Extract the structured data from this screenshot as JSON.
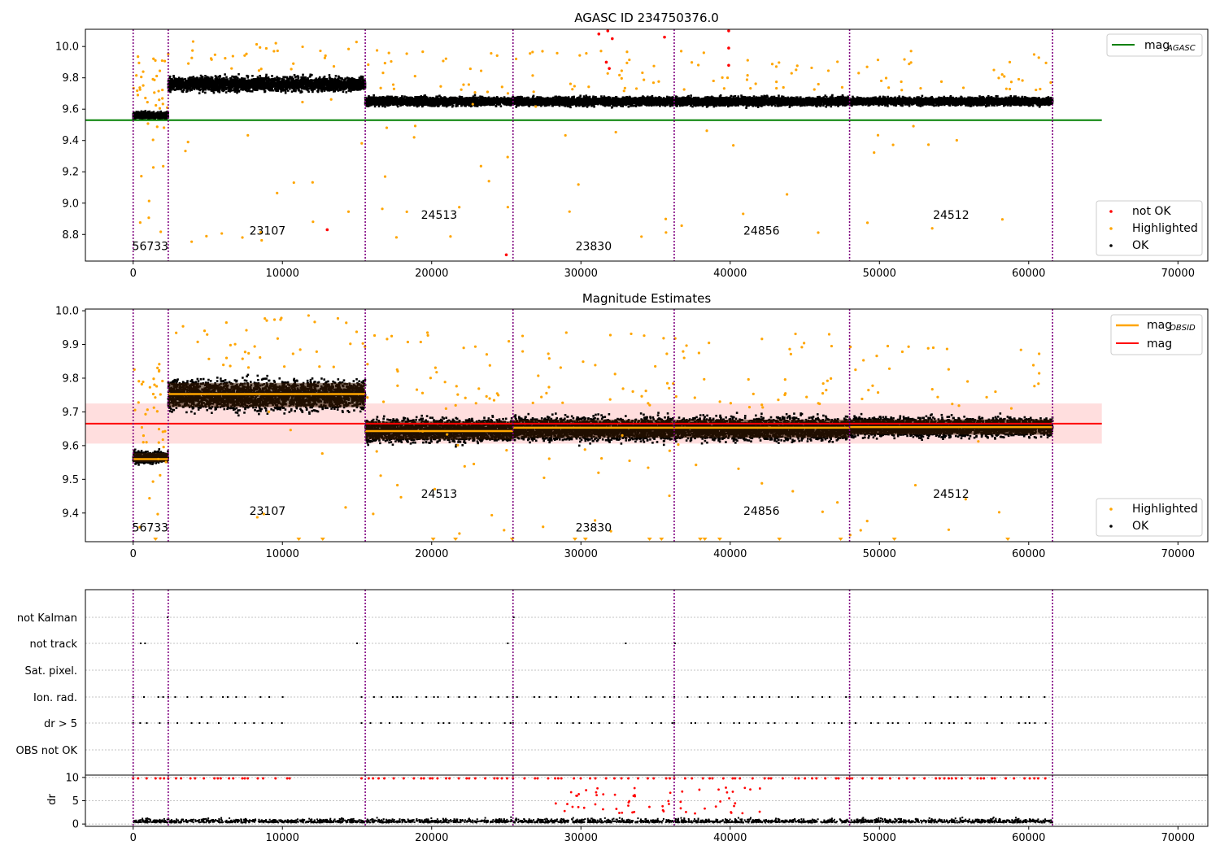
{
  "chart_data": [
    {
      "type": "scatter",
      "title": "AGASC ID 234750376.0",
      "xlim": [
        -3200,
        72000
      ],
      "ylim": [
        8.63,
        10.11
      ],
      "x_ticks": [
        0,
        10000,
        20000,
        30000,
        40000,
        50000,
        60000,
        70000
      ],
      "y_ticks": [
        8.8,
        9.0,
        9.2,
        9.4,
        9.6,
        9.8,
        10.0
      ],
      "x_tick_labels": [
        "0",
        "10000",
        "20000",
        "30000",
        "40000",
        "50000",
        "60000",
        "70000"
      ],
      "y_tick_labels": [
        "8.8",
        "9.0",
        "9.2",
        "9.4",
        "9.6",
        "9.8",
        "10.0"
      ],
      "obsid_boundaries": [
        0,
        2350,
        15550,
        25450,
        36250,
        48000,
        61600
      ],
      "obsid_labels": [
        {
          "label": "56733",
          "x": 1150,
          "y": 8.7
        },
        {
          "label": "23107",
          "x": 9000,
          "y": 8.8
        },
        {
          "label": "24513",
          "x": 20500,
          "y": 8.9
        },
        {
          "label": "23830",
          "x": 30850,
          "y": 8.7
        },
        {
          "label": "24856",
          "x": 42100,
          "y": 8.8
        },
        {
          "label": "24512",
          "x": 54800,
          "y": 8.9
        }
      ],
      "mag_agasc": 9.53,
      "mag_agasc_line_x": [
        -3200,
        64900
      ],
      "segments": [
        {
          "x0": 0,
          "x1": 2350,
          "mean": 9.56,
          "spread": 0.02
        },
        {
          "x0": 2350,
          "x1": 15550,
          "mean": 9.76,
          "spread": 0.04
        },
        {
          "x0": 15550,
          "x1": 25450,
          "mean": 9.65,
          "spread": 0.025
        },
        {
          "x0": 25450,
          "x1": 36250,
          "mean": 9.65,
          "spread": 0.025
        },
        {
          "x0": 36250,
          "x1": 48000,
          "mean": 9.65,
          "spread": 0.025
        },
        {
          "x0": 48000,
          "x1": 61600,
          "mean": 9.65,
          "spread": 0.022
        }
      ],
      "not_ok_points": [
        [
          13000,
          8.83
        ],
        [
          25000,
          8.67
        ],
        [
          31200,
          10.08
        ],
        [
          31800,
          10.1
        ],
        [
          32100,
          10.05
        ],
        [
          35600,
          10.06
        ],
        [
          39900,
          10.1
        ],
        [
          39900,
          9.99
        ],
        [
          39900,
          9.88
        ],
        [
          31700,
          9.9
        ],
        [
          31900,
          9.86
        ]
      ],
      "legend_top": [
        {
          "label": "mag",
          "sub": "AGASC",
          "color": "#008000"
        }
      ],
      "legend_bottom": [
        {
          "label": "not OK",
          "color": "#ff0000"
        },
        {
          "label": "Highlighted",
          "color": "#ffa500"
        },
        {
          "label": "OK",
          "color": "#000000"
        }
      ]
    },
    {
      "type": "scatter",
      "title": "Magnitude Estimates",
      "xlim": [
        -3200,
        72000
      ],
      "ylim": [
        9.315,
        10.005
      ],
      "x_ticks": [
        0,
        10000,
        20000,
        30000,
        40000,
        50000,
        60000,
        70000
      ],
      "y_ticks": [
        9.4,
        9.5,
        9.6,
        9.7,
        9.8,
        9.9,
        10.0
      ],
      "x_tick_labels": [
        "0",
        "10000",
        "20000",
        "30000",
        "40000",
        "50000",
        "60000",
        "70000"
      ],
      "y_tick_labels": [
        "9.4",
        "9.5",
        "9.6",
        "9.7",
        "9.8",
        "9.9",
        "10.0"
      ],
      "obsid_boundaries": [
        0,
        2350,
        15550,
        25450,
        36250,
        48000,
        61600
      ],
      "obsid_labels": [
        {
          "label": "56733",
          "x": 1150,
          "y": 9.345
        },
        {
          "label": "23107",
          "x": 9000,
          "y": 9.395
        },
        {
          "label": "24513",
          "x": 20500,
          "y": 9.445
        },
        {
          "label": "23830",
          "x": 30850,
          "y": 9.345
        },
        {
          "label": "24856",
          "x": 42100,
          "y": 9.395
        },
        {
          "label": "24512",
          "x": 54800,
          "y": 9.445
        }
      ],
      "mag": 9.665,
      "mag_band": [
        9.606,
        9.725
      ],
      "mag_line_x": [
        -3200,
        64900
      ],
      "mag_obsid": [
        {
          "x0": 0,
          "x1": 2350,
          "value": 9.56
        },
        {
          "x0": 2350,
          "x1": 15550,
          "value": 9.753
        },
        {
          "x0": 15550,
          "x1": 25450,
          "value": 9.643
        },
        {
          "x0": 25450,
          "x1": 36250,
          "value": 9.653
        },
        {
          "x0": 36250,
          "x1": 48000,
          "value": 9.653
        },
        {
          "x0": 48000,
          "x1": 61600,
          "value": 9.655
        }
      ],
      "segments": [
        {
          "x0": 0,
          "x1": 2350,
          "mean": 9.565,
          "spread": 0.015
        },
        {
          "x0": 2350,
          "x1": 15550,
          "mean": 9.75,
          "spread": 0.04
        },
        {
          "x0": 15550,
          "x1": 25450,
          "mean": 9.645,
          "spread": 0.03
        },
        {
          "x0": 25450,
          "x1": 36250,
          "mean": 9.65,
          "spread": 0.03
        },
        {
          "x0": 36250,
          "x1": 48000,
          "mean": 9.65,
          "spread": 0.03
        },
        {
          "x0": 48000,
          "x1": 61600,
          "mean": 9.655,
          "spread": 0.025
        }
      ],
      "legend_top": [
        {
          "label": "mag",
          "sub": "OBSID",
          "color": "#ffa500"
        },
        {
          "label": "mag",
          "sub": "",
          "color": "#ff0000"
        }
      ],
      "legend_bottom": [
        {
          "label": "Highlighted",
          "color": "#ffa500"
        },
        {
          "label": "OK",
          "color": "#000000"
        }
      ]
    },
    {
      "type": "scatter",
      "title": "",
      "xlim": [
        -3200,
        72000
      ],
      "categories": [
        "not Kalman",
        "not track",
        "Sat. pixel.",
        "Ion. rad.",
        "dr > 5",
        "OBS not OK"
      ],
      "obsid_boundaries": [
        0,
        2350,
        15550,
        25450,
        36250,
        48000,
        61600
      ],
      "flags": {
        "not Kalman": [
          2300,
          25500
        ],
        "not track": [
          500,
          800,
          15000,
          25100,
          33000,
          36300
        ],
        "Sat. pixel.": [],
        "Ion. rad.": "dense",
        "dr > 5": "dense",
        "OBS not OK": []
      }
    },
    {
      "type": "scatter",
      "title": "",
      "xlim": [
        -3200,
        72000
      ],
      "ylim": [
        -0.5,
        10.5
      ],
      "y_ticks": [
        0,
        5,
        10
      ],
      "x_ticks": [
        0,
        10000,
        20000,
        30000,
        40000,
        50000,
        60000,
        70000
      ],
      "y_tick_labels": [
        "0",
        "5",
        "10"
      ],
      "x_tick_labels": [
        "0",
        "10000",
        "20000",
        "30000",
        "40000",
        "50000",
        "60000",
        "70000"
      ],
      "ylabel": "dr",
      "obsid_boundaries": [
        0,
        2350,
        15550,
        25450,
        36250,
        48000,
        61600
      ]
    }
  ]
}
